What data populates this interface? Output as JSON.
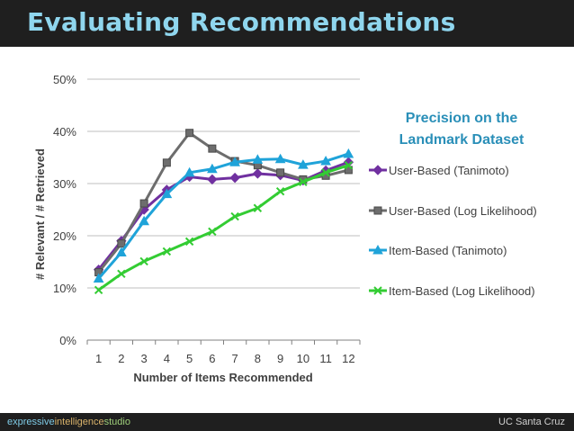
{
  "header": {
    "title": "Evaluating Recommendations"
  },
  "footer": {
    "brand_word1": "expressive",
    "brand_word2": "intelligence",
    "brand_word3": "studio",
    "right": "UC Santa Cruz"
  },
  "colors": {
    "title": "#8fd6ee",
    "legend_title": "#2a8fb8",
    "grid": "#bfbfbf",
    "axis": "#808080"
  },
  "chart_data": {
    "type": "line",
    "legend_title": "Precision on the Landmark Dataset",
    "legend_placement": "right",
    "xlabel": "Number of Items Recommended",
    "ylabel": "# Relevant / # Retrieved",
    "x": [
      1,
      2,
      3,
      4,
      5,
      6,
      7,
      8,
      9,
      10,
      11,
      12
    ],
    "x_tick_labels": [
      "1",
      "2",
      "3",
      "4",
      "5",
      "6",
      "7",
      "8",
      "9",
      "10",
      "11",
      "12"
    ],
    "ylim": [
      0,
      0.5
    ],
    "y_ticks": [
      0,
      0.1,
      0.2,
      0.3,
      0.4,
      0.5
    ],
    "y_tick_labels": [
      "0%",
      "10%",
      "20%",
      "30%",
      "40%",
      "50%"
    ],
    "grid": "horizontal",
    "series": [
      {
        "name": "User-Based (Tanimoto)",
        "color": "#7030a0",
        "marker": "diamond",
        "values": [
          0.135,
          0.19,
          0.25,
          0.288,
          0.313,
          0.308,
          0.311,
          0.319,
          0.316,
          0.306,
          0.325,
          0.341
        ]
      },
      {
        "name": "User-Based (Log Likelihood)",
        "color": "#6d6d6d",
        "marker": "square",
        "values": [
          0.13,
          0.185,
          0.262,
          0.34,
          0.397,
          0.367,
          0.343,
          0.335,
          0.321,
          0.308,
          0.315,
          0.326
        ]
      },
      {
        "name": "Item-Based (Tanimoto)",
        "color": "#1fa3d9",
        "marker": "triangle",
        "values": [
          0.118,
          0.168,
          0.228,
          0.28,
          0.321,
          0.328,
          0.341,
          0.346,
          0.347,
          0.336,
          0.343,
          0.357
        ]
      },
      {
        "name": "Item-Based (Log Likelihood)",
        "color": "#33cc33",
        "marker": "x",
        "values": [
          0.096,
          0.127,
          0.151,
          0.17,
          0.189,
          0.208,
          0.237,
          0.253,
          0.285,
          0.303,
          0.321,
          0.335
        ]
      }
    ]
  }
}
